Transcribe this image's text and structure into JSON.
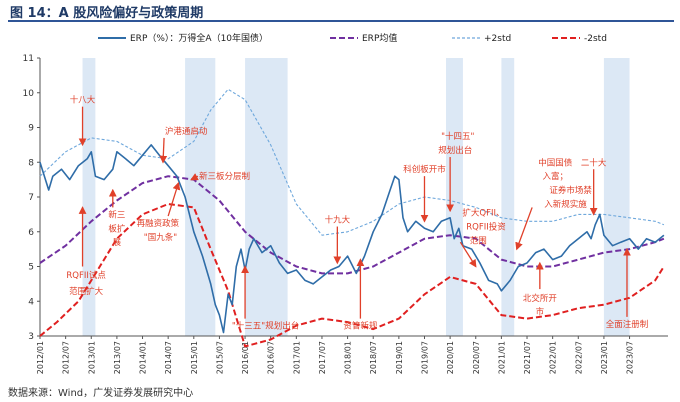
{
  "figure": {
    "title": "图 14：A 股风险偏好与政策周期",
    "source": "数据来源：Wind，广发证券发展研究中心"
  },
  "colors": {
    "erp": "#2f6da8",
    "mean": "#7030a0",
    "plus2": "#6fa8dc",
    "minus2": "#e02020",
    "shade": "#dce8f5",
    "annotation": "#e0402a"
  },
  "chart_data": {
    "type": "line",
    "title": "图 14：A 股风险偏好与政策周期",
    "ylim": [
      3,
      11
    ],
    "yticks": [
      "3",
      "4",
      "5",
      "6",
      "7",
      "8",
      "9",
      "10",
      "11"
    ],
    "x_range": [
      2012.0,
      2024.25
    ],
    "x_tick_labels": [
      "2012/01",
      "2012/07",
      "2013/01",
      "2013/07",
      "2014/01",
      "2014/07",
      "2015/01",
      "2015/07",
      "2016/01",
      "2016/07",
      "2017/01",
      "2017/07",
      "2018/01",
      "2018/07",
      "2019/01",
      "2019/07",
      "2020/01",
      "2020/07",
      "2021/01",
      "2021/07",
      "2022/01",
      "2022/07",
      "2023/01",
      "2023/07"
    ],
    "legend": {
      "erp": "ERP（%）：万得全A（10年国债）",
      "mean": "ERP均值",
      "plus2": "+2std",
      "minus2": "-2std"
    },
    "shaded_periods": [
      [
        2012.83,
        2013.08
      ],
      [
        2014.83,
        2015.42
      ],
      [
        2016.0,
        2016.83
      ],
      [
        2019.92,
        2020.25
      ],
      [
        2021.0,
        2021.25
      ],
      [
        2023.0,
        2023.5
      ]
    ],
    "series": [
      {
        "name": "ERP（%）：万得全A（10年国债）",
        "key": "erp",
        "x": [
          2012.0,
          2012.17,
          2012.25,
          2012.42,
          2012.58,
          2012.75,
          2012.92,
          2013.0,
          2013.08,
          2013.25,
          2013.42,
          2013.5,
          2013.67,
          2013.83,
          2014.0,
          2014.17,
          2014.33,
          2014.5,
          2014.67,
          2014.83,
          2015.0,
          2015.17,
          2015.33,
          2015.42,
          2015.5,
          2015.58,
          2015.67,
          2015.75,
          2015.83,
          2015.92,
          2016.0,
          2016.08,
          2016.17,
          2016.33,
          2016.5,
          2016.67,
          2016.83,
          2017.0,
          2017.17,
          2017.33,
          2017.5,
          2017.67,
          2017.83,
          2018.0,
          2018.17,
          2018.33,
          2018.5,
          2018.67,
          2018.83,
          2018.92,
          2019.0,
          2019.08,
          2019.17,
          2019.33,
          2019.5,
          2019.67,
          2019.83,
          2020.0,
          2020.08,
          2020.17,
          2020.25,
          2020.42,
          2020.58,
          2020.75,
          2020.92,
          2021.0,
          2021.17,
          2021.33,
          2021.5,
          2021.67,
          2021.83,
          2022.0,
          2022.17,
          2022.33,
          2022.5,
          2022.67,
          2022.75,
          2022.83,
          2022.92,
          2023.0,
          2023.17,
          2023.33,
          2023.5,
          2023.67,
          2023.83,
          2024.0,
          2024.17
        ],
        "values": [
          8.0,
          7.2,
          7.6,
          7.8,
          7.5,
          7.9,
          8.1,
          8.3,
          7.6,
          7.5,
          7.8,
          8.3,
          8.1,
          7.9,
          8.2,
          8.5,
          8.2,
          7.9,
          7.6,
          7.0,
          6.0,
          5.3,
          4.5,
          3.9,
          3.6,
          3.1,
          4.2,
          3.9,
          5.0,
          5.5,
          4.9,
          5.5,
          5.8,
          5.4,
          5.6,
          5.1,
          4.8,
          4.9,
          4.6,
          4.5,
          4.7,
          4.9,
          5.0,
          5.3,
          4.8,
          5.3,
          6.0,
          6.5,
          7.2,
          7.6,
          7.5,
          6.4,
          6.0,
          6.3,
          6.1,
          6.0,
          6.3,
          6.4,
          5.8,
          6.1,
          5.6,
          5.5,
          5.1,
          4.6,
          4.5,
          4.3,
          4.6,
          5.0,
          5.1,
          5.4,
          5.5,
          5.2,
          5.3,
          5.6,
          5.8,
          6.0,
          5.8,
          6.2,
          6.5,
          5.9,
          5.6,
          5.7,
          5.8,
          5.5,
          5.8,
          5.7,
          5.9
        ]
      },
      {
        "name": "ERP均值",
        "key": "mean",
        "x": [
          2012.0,
          2012.5,
          2013.0,
          2013.5,
          2014.0,
          2014.5,
          2015.0,
          2015.5,
          2016.0,
          2016.5,
          2017.0,
          2017.5,
          2018.0,
          2018.5,
          2019.0,
          2019.5,
          2020.0,
          2020.5,
          2021.0,
          2021.5,
          2022.0,
          2022.5,
          2023.0,
          2023.5,
          2024.0,
          2024.17
        ],
        "values": [
          5.1,
          5.6,
          6.3,
          6.9,
          7.4,
          7.6,
          7.5,
          6.9,
          6.0,
          5.4,
          5.0,
          4.8,
          4.8,
          5.0,
          5.4,
          5.8,
          5.9,
          5.8,
          5.2,
          5.0,
          5.0,
          5.2,
          5.4,
          5.5,
          5.7,
          5.8
        ]
      },
      {
        "name": "+2std",
        "key": "plus2",
        "x": [
          2012.0,
          2012.5,
          2013.0,
          2013.5,
          2014.0,
          2014.5,
          2015.0,
          2015.33,
          2015.67,
          2016.0,
          2016.5,
          2017.0,
          2017.5,
          2018.0,
          2018.5,
          2019.0,
          2019.5,
          2020.0,
          2020.5,
          2021.0,
          2021.5,
          2022.0,
          2022.5,
          2023.0,
          2023.5,
          2024.0,
          2024.17
        ],
        "values": [
          7.6,
          8.3,
          8.7,
          8.6,
          8.2,
          8.1,
          8.6,
          9.5,
          10.1,
          9.8,
          8.5,
          6.8,
          5.9,
          6.0,
          6.3,
          6.8,
          7.0,
          6.9,
          6.7,
          6.4,
          6.3,
          6.3,
          6.5,
          6.5,
          6.4,
          6.3,
          6.2
        ]
      },
      {
        "name": "-2std",
        "key": "minus2",
        "x": [
          2012.0,
          2012.33,
          2012.75,
          2013.0,
          2013.5,
          2014.0,
          2014.5,
          2015.0,
          2015.33,
          2015.67,
          2016.0,
          2016.5,
          2017.0,
          2017.5,
          2018.0,
          2018.5,
          2019.0,
          2019.5,
          2020.0,
          2020.5,
          2021.0,
          2021.5,
          2022.0,
          2022.5,
          2023.0,
          2023.5,
          2024.0,
          2024.17
        ],
        "values": [
          3.0,
          3.4,
          4.0,
          4.6,
          5.8,
          6.5,
          6.8,
          6.7,
          5.5,
          4.3,
          2.7,
          2.9,
          3.3,
          3.5,
          3.4,
          3.2,
          3.5,
          4.2,
          4.7,
          4.5,
          3.6,
          3.5,
          3.6,
          3.8,
          3.9,
          4.1,
          4.6,
          5.0
        ]
      }
    ],
    "annotations": [
      {
        "text": "十八大",
        "x": 2012.83,
        "y": 9.8
      },
      {
        "text": "RQFII试点",
        "x": 2012.9,
        "y": 4.75
      },
      {
        "text": "范围扩大",
        "x": 2012.9,
        "y": 4.3
      },
      {
        "text": "新三",
        "x": 2013.5,
        "y": 6.5
      },
      {
        "text": "板扩",
        "x": 2013.5,
        "y": 6.1
      },
      {
        "text": "展",
        "x": 2013.5,
        "y": 5.7
      },
      {
        "text": "沪港通启动",
        "x": 2014.85,
        "y": 8.9
      },
      {
        "text": "再融资政策",
        "x": 2014.3,
        "y": 6.25
      },
      {
        "text": "\"国九条\"",
        "x": 2014.35,
        "y": 5.85
      },
      {
        "text": "新三板分层制",
        "x": 2015.6,
        "y": 7.6
      },
      {
        "text": "\"十三五\"规划出台",
        "x": 2016.4,
        "y": 3.3
      },
      {
        "text": "十九大",
        "x": 2017.8,
        "y": 6.35
      },
      {
        "text": "资管新规",
        "x": 2018.25,
        "y": 3.3
      },
      {
        "text": "科创板开市",
        "x": 2019.5,
        "y": 7.8
      },
      {
        "text": "\"十四五\"",
        "x": 2020.15,
        "y": 8.75
      },
      {
        "text": "规划出台",
        "x": 2020.1,
        "y": 8.35
      },
      {
        "text": "扩大QFII、",
        "x": 2020.65,
        "y": 6.55
      },
      {
        "text": "RQFII投资",
        "x": 2020.7,
        "y": 6.15
      },
      {
        "text": "范围",
        "x": 2020.55,
        "y": 5.75
      },
      {
        "text": "中国国债",
        "x": 2022.05,
        "y": 8.0
      },
      {
        "text": "入富；",
        "x": 2022.05,
        "y": 7.6
      },
      {
        "text": "证券市场禁",
        "x": 2022.35,
        "y": 7.2
      },
      {
        "text": "入新规实施",
        "x": 2022.25,
        "y": 6.8
      },
      {
        "text": "二十大",
        "x": 2022.8,
        "y": 8.0
      },
      {
        "text": "北交所开",
        "x": 2021.75,
        "y": 4.1
      },
      {
        "text": "市",
        "x": 2021.75,
        "y": 3.7
      },
      {
        "text": "全面注册制",
        "x": 2023.45,
        "y": 3.35
      }
    ],
    "arrows": [
      {
        "x1": 2012.83,
        "y1": 9.6,
        "x2": 2012.83,
        "y2": 8.5
      },
      {
        "x1": 2012.83,
        "y1": 5.0,
        "x2": 2012.83,
        "y2": 6.7
      },
      {
        "x1": 2013.42,
        "y1": 6.7,
        "x2": 2013.42,
        "y2": 7.2
      },
      {
        "x1": 2014.42,
        "y1": 8.7,
        "x2": 2014.4,
        "y2": 8.0
      },
      {
        "x1": 2014.5,
        "y1": 6.45,
        "x2": 2014.7,
        "y2": 7.4
      },
      {
        "x1": 2015.08,
        "y1": 7.6,
        "x2": 2014.95,
        "y2": 7.5
      },
      {
        "x1": 2016.0,
        "y1": 3.5,
        "x2": 2016.0,
        "y2": 5.0
      },
      {
        "x1": 2017.8,
        "y1": 6.15,
        "x2": 2017.8,
        "y2": 5.1
      },
      {
        "x1": 2018.25,
        "y1": 3.5,
        "x2": 2018.25,
        "y2": 5.2
      },
      {
        "x1": 2019.5,
        "y1": 7.6,
        "x2": 2019.5,
        "y2": 6.3
      },
      {
        "x1": 2020.0,
        "y1": 8.15,
        "x2": 2020.0,
        "y2": 6.6
      },
      {
        "x1": 2020.2,
        "y1": 5.7,
        "x2": 2020.5,
        "y2": 5.0
      },
      {
        "x1": 2021.6,
        "y1": 6.7,
        "x2": 2021.3,
        "y2": 5.5
      },
      {
        "x1": 2021.75,
        "y1": 4.35,
        "x2": 2021.75,
        "y2": 5.1
      },
      {
        "x1": 2022.8,
        "y1": 7.8,
        "x2": 2022.8,
        "y2": 6.5
      },
      {
        "x1": 2023.45,
        "y1": 3.55,
        "x2": 2023.45,
        "y2": 5.5
      }
    ]
  }
}
